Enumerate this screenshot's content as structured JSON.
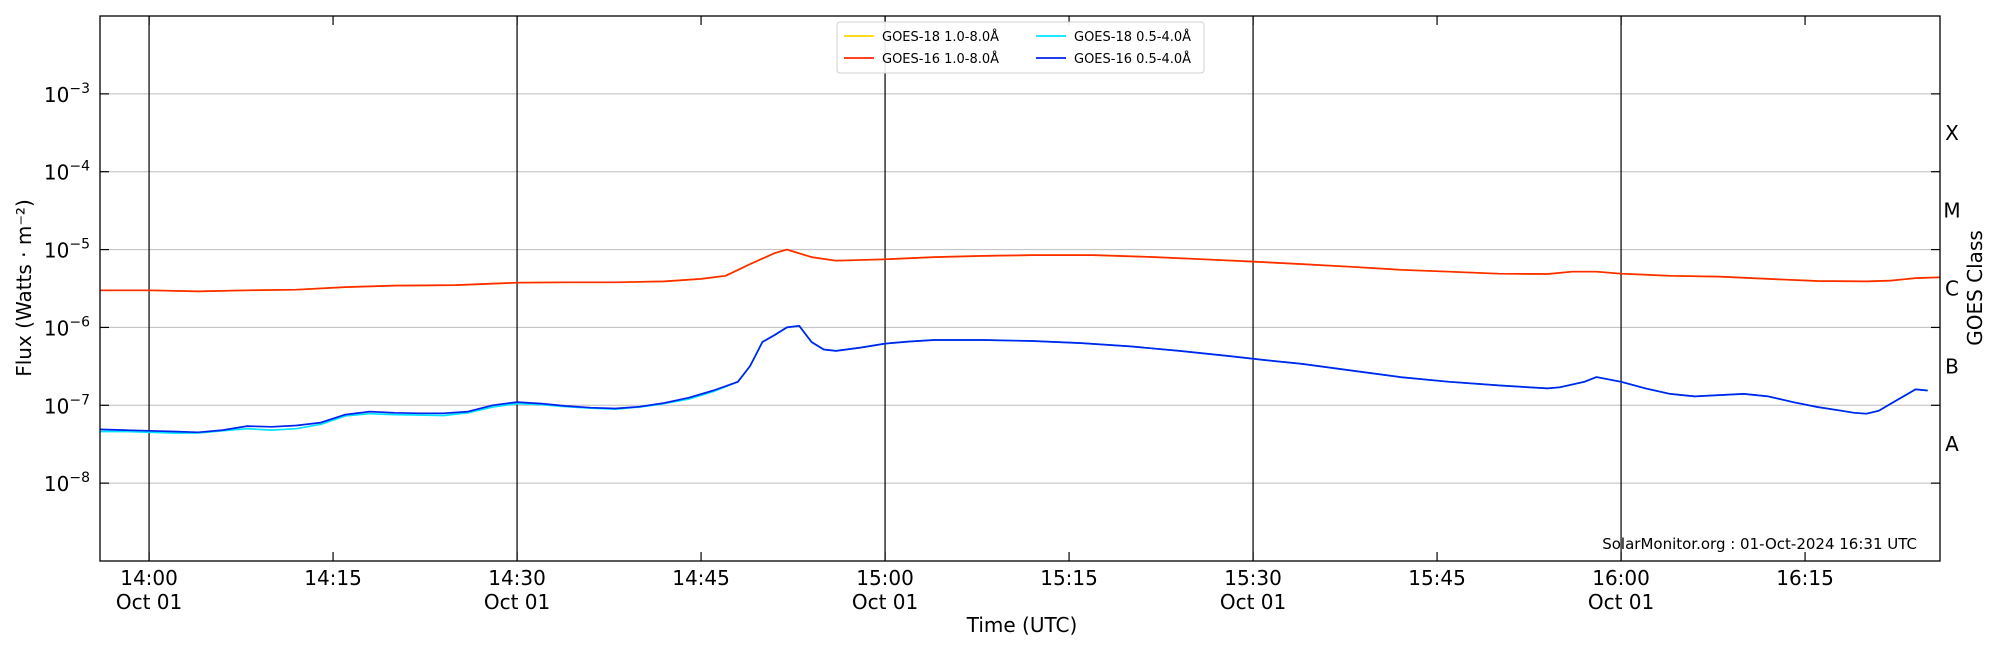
{
  "chart_data": {
    "type": "line",
    "ylabel": "Flux (Watts · m⁻²)",
    "xlabel": "Time (UTC)",
    "right_label": "GOES Class",
    "y_scale": "log",
    "ylim": [
      1e-09,
      0.01
    ],
    "xlim": [
      "13:56",
      "16:26"
    ],
    "grid": "horizontal",
    "legend_position": "top-center",
    "credit": "SolarMonitor.org : 01-Oct-2024 16:31 UTC",
    "y_ticks": [
      {
        "value": 1e-08,
        "label": "10",
        "exp": "−8"
      },
      {
        "value": 1e-07,
        "label": "10",
        "exp": "−7"
      },
      {
        "value": 1e-06,
        "label": "10",
        "exp": "−6"
      },
      {
        "value": 1e-05,
        "label": "10",
        "exp": "−5"
      },
      {
        "value": 0.0001,
        "label": "10",
        "exp": "−4"
      },
      {
        "value": 0.001,
        "label": "10",
        "exp": "−3"
      }
    ],
    "x_ticks": [
      {
        "time": "14:00",
        "label": "14:00",
        "sub": "Oct 01",
        "major": true
      },
      {
        "time": "14:15",
        "label": "14:15",
        "sub": "",
        "major": false
      },
      {
        "time": "14:30",
        "label": "14:30",
        "sub": "Oct 01",
        "major": true
      },
      {
        "time": "14:45",
        "label": "14:45",
        "sub": "",
        "major": false
      },
      {
        "time": "15:00",
        "label": "15:00",
        "sub": "Oct 01",
        "major": true
      },
      {
        "time": "15:15",
        "label": "15:15",
        "sub": "",
        "major": false
      },
      {
        "time": "15:30",
        "label": "15:30",
        "sub": "Oct 01",
        "major": true
      },
      {
        "time": "15:45",
        "label": "15:45",
        "sub": "",
        "major": false
      },
      {
        "time": "16:00",
        "label": "16:00",
        "sub": "Oct 01",
        "major": true
      },
      {
        "time": "16:15",
        "label": "16:15",
        "sub": "",
        "major": false
      }
    ],
    "classes": [
      {
        "label": "A",
        "value": 3.16e-08
      },
      {
        "label": "B",
        "value": 3.16e-07
      },
      {
        "label": "C",
        "value": 3.16e-06
      },
      {
        "label": "M",
        "value": 3.16e-05
      },
      {
        "label": "X",
        "value": 0.000316
      }
    ],
    "series": [
      {
        "name": "GOES-18 1.0-8.0Å",
        "color": "#ffd700",
        "x": [
          "13:56",
          "14:00",
          "14:04",
          "14:08",
          "14:12",
          "14:16",
          "14:20",
          "14:25",
          "14:30",
          "14:34",
          "14:38",
          "14:42",
          "14:45",
          "14:47",
          "14:49",
          "14:51",
          "14:52",
          "14:54",
          "14:56",
          "15:00",
          "15:04",
          "15:08",
          "15:12",
          "15:17",
          "15:22",
          "15:26",
          "15:30",
          "15:34",
          "15:38",
          "15:42",
          "15:46",
          "15:50",
          "15:54",
          "15:56",
          "15:58",
          "16:00",
          "16:04",
          "16:08",
          "16:12",
          "16:16",
          "16:20",
          "16:22",
          "16:24",
          "16:26"
        ],
        "values": [
          3e-06,
          3e-06,
          2.9e-06,
          3e-06,
          3.05e-06,
          3.3e-06,
          3.45e-06,
          3.5e-06,
          3.75e-06,
          3.8e-06,
          3.8e-06,
          3.9e-06,
          4.2e-06,
          4.6e-06,
          6.5e-06,
          9e-06,
          1e-05,
          8e-06,
          7.2e-06,
          7.5e-06,
          8e-06,
          8.3e-06,
          8.5e-06,
          8.5e-06,
          8e-06,
          7.5e-06,
          7e-06,
          6.5e-06,
          6e-06,
          5.5e-06,
          5.2e-06,
          4.9e-06,
          4.85e-06,
          5.2e-06,
          5.2e-06,
          4.9e-06,
          4.6e-06,
          4.5e-06,
          4.2e-06,
          3.95e-06,
          3.9e-06,
          4e-06,
          4.3e-06,
          4.4e-06
        ]
      },
      {
        "name": "GOES-16 1.0-8.0Å",
        "color": "#ff2a00",
        "x": [
          "13:56",
          "14:00",
          "14:04",
          "14:08",
          "14:12",
          "14:16",
          "14:20",
          "14:25",
          "14:30",
          "14:34",
          "14:38",
          "14:42",
          "14:45",
          "14:47",
          "14:49",
          "14:51",
          "14:52",
          "14:54",
          "14:56",
          "15:00",
          "15:04",
          "15:08",
          "15:12",
          "15:17",
          "15:22",
          "15:26",
          "15:30",
          "15:34",
          "15:38",
          "15:42",
          "15:46",
          "15:50",
          "15:54",
          "15:56",
          "15:58",
          "16:00",
          "16:04",
          "16:08",
          "16:12",
          "16:16",
          "16:20",
          "16:22",
          "16:24",
          "16:26"
        ],
        "values": [
          3e-06,
          3e-06,
          2.9e-06,
          3e-06,
          3.05e-06,
          3.3e-06,
          3.45e-06,
          3.5e-06,
          3.75e-06,
          3.8e-06,
          3.8e-06,
          3.9e-06,
          4.2e-06,
          4.6e-06,
          6.5e-06,
          9e-06,
          1e-05,
          8e-06,
          7.2e-06,
          7.5e-06,
          8e-06,
          8.3e-06,
          8.5e-06,
          8.5e-06,
          8e-06,
          7.5e-06,
          7e-06,
          6.5e-06,
          6e-06,
          5.5e-06,
          5.2e-06,
          4.9e-06,
          4.85e-06,
          5.2e-06,
          5.2e-06,
          4.9e-06,
          4.6e-06,
          4.5e-06,
          4.2e-06,
          3.95e-06,
          3.9e-06,
          4e-06,
          4.3e-06,
          4.4e-06
        ]
      },
      {
        "name": "GOES-18 0.5-4.0Å",
        "color": "#00e5ff",
        "x": [
          "13:56",
          "13:58",
          "14:00",
          "14:02",
          "14:04",
          "14:06",
          "14:08",
          "14:10",
          "14:12",
          "14:14",
          "14:16",
          "14:18",
          "14:20",
          "14:22",
          "14:24",
          "14:26",
          "14:28",
          "14:30",
          "14:32",
          "14:34",
          "14:36",
          "14:38",
          "14:40",
          "14:42",
          "14:44",
          "14:46",
          "14:48",
          "14:49",
          "14:50",
          "14:51",
          "14:52",
          "14:53",
          "14:54",
          "14:55",
          "14:56",
          "14:58",
          "15:00",
          "15:02",
          "15:04",
          "15:08",
          "15:12",
          "15:16",
          "15:20",
          "15:24",
          "15:28",
          "15:31",
          "15:34",
          "15:38",
          "15:42",
          "15:46",
          "15:50",
          "15:54",
          "15:55",
          "15:57",
          "15:58",
          "16:00",
          "16:02",
          "16:04",
          "16:06",
          "16:08",
          "16:10",
          "16:12",
          "16:14",
          "16:16",
          "16:18",
          "16:19",
          "16:20",
          "16:21",
          "16:22",
          "16:24",
          "16:25"
        ],
        "values": [
          4.6e-08,
          4.6e-08,
          4.5e-08,
          4.4e-08,
          4.4e-08,
          4.7e-08,
          5e-08,
          4.8e-08,
          5e-08,
          5.7e-08,
          7.3e-08,
          7.8e-08,
          7.6e-08,
          7.5e-08,
          7.4e-08,
          8e-08,
          9.5e-08,
          1.05e-07,
          1.02e-07,
          9.6e-08,
          9.2e-08,
          8.9e-08,
          9.5e-08,
          1.05e-07,
          1.2e-07,
          1.5e-07,
          2e-07,
          3.2e-07,
          6.5e-07,
          8e-07,
          1e-06,
          1.05e-06,
          6.5e-07,
          5.2e-07,
          5e-07,
          5.5e-07,
          6.2e-07,
          6.6e-07,
          6.9e-07,
          6.9e-07,
          6.7e-07,
          6.3e-07,
          5.7e-07,
          5e-07,
          4.3e-07,
          3.8e-07,
          3.4e-07,
          2.8e-07,
          2.3e-07,
          2e-07,
          1.8e-07,
          1.65e-07,
          1.7e-07,
          2e-07,
          2.3e-07,
          2e-07,
          1.65e-07,
          1.4e-07,
          1.3e-07,
          1.35e-07,
          1.4e-07,
          1.3e-07,
          1.1e-07,
          9.5e-08,
          8.5e-08,
          8e-08,
          7.8e-08,
          8.5e-08,
          1.05e-07,
          1.6e-07,
          1.55e-07
        ]
      },
      {
        "name": "GOES-16 0.5-4.0Å",
        "color": "#0022ee",
        "x": [
          "13:56",
          "13:58",
          "14:00",
          "14:02",
          "14:04",
          "14:06",
          "14:08",
          "14:10",
          "14:12",
          "14:14",
          "14:16",
          "14:18",
          "14:20",
          "14:22",
          "14:24",
          "14:26",
          "14:28",
          "14:30",
          "14:32",
          "14:34",
          "14:36",
          "14:38",
          "14:40",
          "14:42",
          "14:44",
          "14:46",
          "14:48",
          "14:49",
          "14:50",
          "14:51",
          "14:52",
          "14:53",
          "14:54",
          "14:55",
          "14:56",
          "14:58",
          "15:00",
          "15:02",
          "15:04",
          "15:08",
          "15:12",
          "15:16",
          "15:20",
          "15:24",
          "15:28",
          "15:31",
          "15:34",
          "15:38",
          "15:42",
          "15:46",
          "15:50",
          "15:54",
          "15:55",
          "15:57",
          "15:58",
          "16:00",
          "16:02",
          "16:04",
          "16:06",
          "16:08",
          "16:10",
          "16:12",
          "16:14",
          "16:16",
          "16:18",
          "16:19",
          "16:20",
          "16:21",
          "16:22",
          "16:24",
          "16:25"
        ],
        "values": [
          4.9e-08,
          4.8e-08,
          4.7e-08,
          4.6e-08,
          4.5e-08,
          4.8e-08,
          5.4e-08,
          5.3e-08,
          5.5e-08,
          6e-08,
          7.6e-08,
          8.3e-08,
          8e-08,
          7.9e-08,
          7.9e-08,
          8.3e-08,
          1e-07,
          1.1e-07,
          1.05e-07,
          9.8e-08,
          9.3e-08,
          9.1e-08,
          9.6e-08,
          1.07e-07,
          1.25e-07,
          1.55e-07,
          2e-07,
          3.2e-07,
          6.5e-07,
          8e-07,
          1e-06,
          1.05e-06,
          6.5e-07,
          5.2e-07,
          5e-07,
          5.5e-07,
          6.2e-07,
          6.6e-07,
          6.9e-07,
          6.9e-07,
          6.7e-07,
          6.3e-07,
          5.7e-07,
          5e-07,
          4.3e-07,
          3.8e-07,
          3.4e-07,
          2.8e-07,
          2.3e-07,
          2e-07,
          1.8e-07,
          1.65e-07,
          1.7e-07,
          2e-07,
          2.3e-07,
          2e-07,
          1.65e-07,
          1.4e-07,
          1.3e-07,
          1.35e-07,
          1.4e-07,
          1.3e-07,
          1.1e-07,
          9.5e-08,
          8.5e-08,
          8e-08,
          7.8e-08,
          8.5e-08,
          1.05e-07,
          1.6e-07,
          1.55e-07
        ]
      }
    ]
  }
}
